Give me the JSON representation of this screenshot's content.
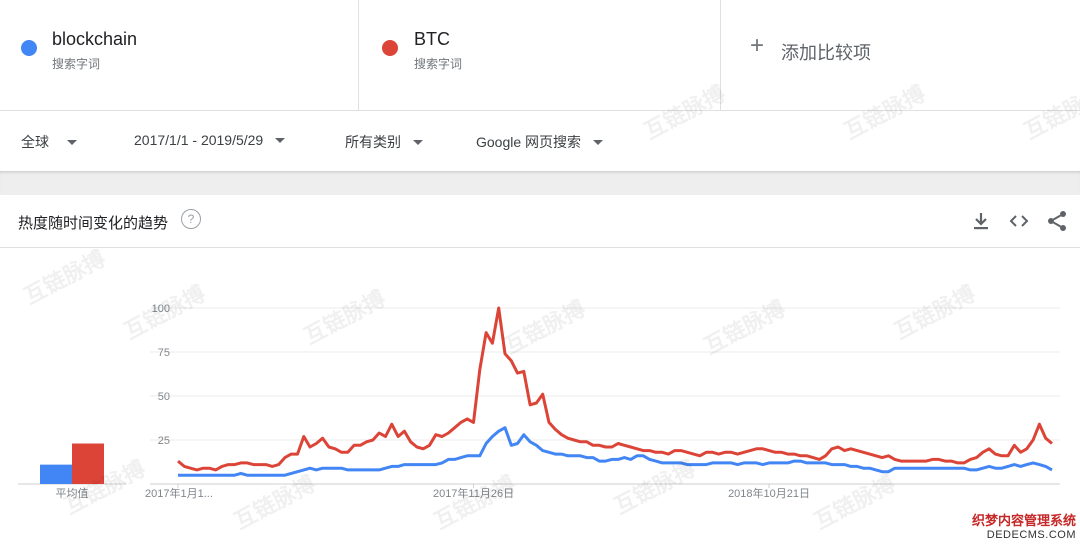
{
  "terms": [
    {
      "name": "blockchain",
      "type": "搜索字词",
      "color": "#4285f4"
    },
    {
      "name": "BTC",
      "type": "搜索字词",
      "color": "#db4437"
    }
  ],
  "add_compare": {
    "plus": "+",
    "label": "添加比较项"
  },
  "filters": {
    "region": "全球",
    "date_range": "2017/1/1 - 2019/5/29",
    "category": "所有类别",
    "search_type": "Google 网页搜索"
  },
  "card": {
    "title": "热度随时间变化的趋势",
    "help": "?",
    "avg_label": "平均值"
  },
  "watermark_text": "互链脉搏",
  "footer": {
    "line1": "织梦内容管理系统",
    "line2": "DEDECMS.COM"
  },
  "chart_data": {
    "type": "line",
    "y_ticks": [
      25,
      50,
      75,
      100
    ],
    "ylim": [
      0,
      100
    ],
    "grid": true,
    "x_tick_labels": [
      {
        "label": "2017年1月1...",
        "index": 0
      },
      {
        "label": "2017年11月26日",
        "index": 47
      },
      {
        "label": "2018年10月21日",
        "index": 94
      }
    ],
    "averages": [
      {
        "name": "blockchain",
        "value": 11
      },
      {
        "name": "BTC",
        "value": 23
      }
    ],
    "series": [
      {
        "name": "blockchain",
        "color": "#4285f4",
        "values": [
          5,
          5,
          5,
          5,
          5,
          5,
          5,
          5,
          5,
          5,
          6,
          5,
          5,
          5,
          5,
          5,
          5,
          5,
          6,
          7,
          8,
          9,
          8,
          9,
          9,
          9,
          9,
          8,
          8,
          8,
          8,
          8,
          8,
          9,
          10,
          10,
          11,
          11,
          11,
          11,
          11,
          11,
          12,
          14,
          14,
          15,
          16,
          16,
          16,
          23,
          27,
          30,
          32,
          22,
          23,
          28,
          24,
          22,
          19,
          18,
          17,
          17,
          16,
          16,
          16,
          15,
          15,
          13,
          13,
          14,
          14,
          15,
          14,
          16,
          16,
          14,
          13,
          12,
          12,
          12,
          12,
          11,
          11,
          11,
          11,
          12,
          12,
          12,
          12,
          11,
          12,
          12,
          12,
          11,
          12,
          12,
          12,
          12,
          13,
          13,
          12,
          12,
          12,
          12,
          11,
          11,
          11,
          10,
          10,
          9,
          9,
          8,
          7,
          7,
          9,
          9,
          9,
          9,
          9,
          9,
          9,
          9,
          9,
          9,
          9,
          9,
          8,
          8,
          9,
          10,
          9,
          9,
          10,
          11,
          10,
          11,
          12,
          11,
          10,
          8
        ]
      },
      {
        "name": "BTC",
        "color": "#db4437",
        "values": [
          13,
          10,
          9,
          8,
          9,
          9,
          8,
          10,
          11,
          11,
          12,
          12,
          11,
          11,
          11,
          10,
          11,
          15,
          17,
          17,
          27,
          21,
          23,
          26,
          21,
          20,
          18,
          18,
          22,
          22,
          24,
          25,
          29,
          27,
          34,
          27,
          30,
          24,
          21,
          20,
          22,
          28,
          27,
          29,
          32,
          35,
          37,
          35,
          65,
          86,
          80,
          100,
          74,
          70,
          63,
          64,
          45,
          46,
          51,
          35,
          31,
          28,
          26,
          25,
          24,
          24,
          22,
          22,
          21,
          21,
          23,
          22,
          21,
          20,
          19,
          19,
          18,
          18,
          17,
          19,
          19,
          18,
          17,
          16,
          18,
          18,
          17,
          18,
          18,
          17,
          18,
          19,
          20,
          20,
          19,
          18,
          18,
          17,
          17,
          16,
          16,
          15,
          14,
          16,
          20,
          21,
          19,
          20,
          19,
          18,
          17,
          16,
          15,
          16,
          14,
          13,
          13,
          13,
          13,
          13,
          14,
          14,
          13,
          13,
          12,
          12,
          14,
          15,
          18,
          20,
          17,
          16,
          16,
          22,
          18,
          20,
          25,
          34,
          26,
          23
        ]
      }
    ]
  }
}
